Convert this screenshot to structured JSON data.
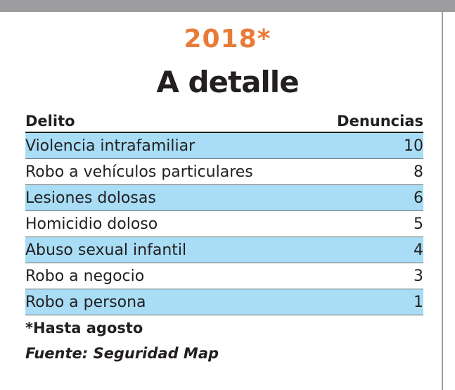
{
  "colors": {
    "accent_orange": "#e97b39",
    "row_highlight": "#a8ddf5",
    "frame_gray": "#9d9d9f",
    "text": "#231f20"
  },
  "chart_data": {
    "type": "table",
    "year_label": "2018*",
    "title": "A detalle",
    "columns": [
      "Delito",
      "Denuncias"
    ],
    "rows": [
      {
        "label": "Violencia intrafamiliar",
        "value": 10,
        "highlighted": true
      },
      {
        "label": "Robo a vehículos particulares",
        "value": 8,
        "highlighted": false
      },
      {
        "label": "Lesiones dolosas",
        "value": 6,
        "highlighted": true
      },
      {
        "label": "Homicidio doloso",
        "value": 5,
        "highlighted": false
      },
      {
        "label": "Abuso sexual infantil",
        "value": 4,
        "highlighted": true
      },
      {
        "label": "Robo a negocio",
        "value": 3,
        "highlighted": false
      },
      {
        "label": "Robo a persona",
        "value": 1,
        "highlighted": true
      }
    ],
    "footnote": "*Hasta agosto",
    "source": "Fuente: Seguridad Map"
  }
}
